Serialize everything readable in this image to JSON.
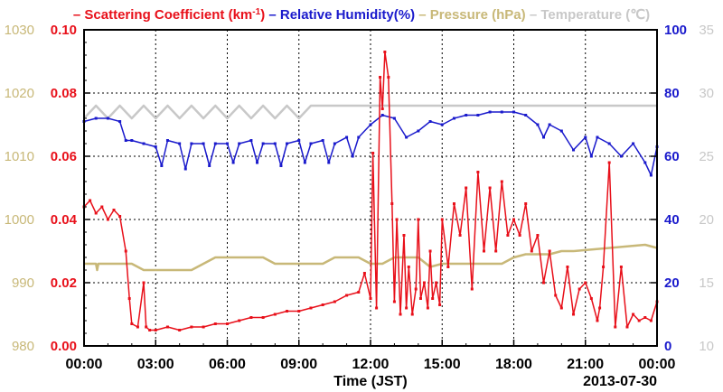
{
  "chart_data": {
    "type": "line",
    "xlabel": "Time (JST)",
    "date_label": "2013-07-30",
    "x_ticks": [
      "00:00",
      "03:00",
      "06:00",
      "09:00",
      "12:00",
      "15:00",
      "18:00",
      "21:00",
      "00:00"
    ],
    "x_unit": "hours",
    "grid": true,
    "legend": {
      "placement": "top",
      "separator": "–",
      "items": [
        {
          "name": "Scattering Coefficient (km",
          "sup": "-1",
          "tail": ")",
          "color": "#e8101a"
        },
        {
          "name": "Relative Humidity(%)",
          "color": "#1a1acc"
        },
        {
          "name": "Pressure (hPa)",
          "color": "#c8b878"
        },
        {
          "name": "Temperature (℃)",
          "color": "#c8c8c8"
        }
      ]
    },
    "axes": {
      "scattering": {
        "side": "left-inner",
        "min": 0.0,
        "max": 0.1,
        "ticks": [
          "0.00",
          "0.02",
          "0.04",
          "0.06",
          "0.08",
          "0.10"
        ],
        "color": "#e8101a"
      },
      "pressure": {
        "side": "left-outer",
        "min": 980,
        "max": 1030,
        "ticks": [
          "980",
          "990",
          "1000",
          "1010",
          "1020",
          "1030"
        ],
        "color": "#c8b878"
      },
      "humidity": {
        "side": "right-inner",
        "min": 0,
        "max": 100,
        "ticks": [
          "0",
          "20",
          "40",
          "60",
          "80",
          "100"
        ],
        "color": "#1a1acc"
      },
      "temperature": {
        "side": "right-outer",
        "min": 10,
        "max": 35,
        "ticks": [
          "10",
          "15",
          "20",
          "25",
          "30",
          "35"
        ],
        "color": "#c8c8c8"
      }
    },
    "series": [
      {
        "name": "Scattering Coefficient",
        "axis": "scattering",
        "color": "#e8101a",
        "markers": true,
        "x": [
          0,
          0.25,
          0.5,
          0.75,
          1.0,
          1.25,
          1.5,
          1.75,
          1.9,
          2.0,
          2.25,
          2.5,
          2.6,
          2.75,
          3.0,
          3.5,
          4.0,
          4.5,
          5.0,
          5.5,
          6.0,
          6.5,
          7.0,
          7.5,
          8.0,
          8.5,
          9.0,
          9.5,
          10.0,
          10.5,
          11.0,
          11.5,
          11.75,
          12.0,
          12.1,
          12.25,
          12.4,
          12.5,
          12.6,
          12.75,
          12.9,
          13.0,
          13.1,
          13.25,
          13.4,
          13.5,
          13.6,
          13.75,
          13.9,
          14.0,
          14.1,
          14.25,
          14.4,
          14.5,
          14.6,
          14.75,
          14.9,
          15.0,
          15.25,
          15.5,
          15.75,
          16.0,
          16.25,
          16.5,
          16.75,
          17.0,
          17.25,
          17.5,
          17.75,
          18.0,
          18.25,
          18.5,
          18.75,
          19.0,
          19.25,
          19.5,
          19.75,
          20.0,
          20.25,
          20.5,
          20.75,
          21.0,
          21.25,
          21.5,
          21.6,
          21.75,
          22.0,
          22.25,
          22.5,
          22.75,
          23.0,
          23.25,
          23.5,
          23.75,
          24.0
        ],
        "values": [
          0.044,
          0.046,
          0.042,
          0.044,
          0.04,
          0.043,
          0.041,
          0.03,
          0.015,
          0.007,
          0.006,
          0.02,
          0.006,
          0.005,
          0.005,
          0.006,
          0.005,
          0.006,
          0.006,
          0.007,
          0.007,
          0.008,
          0.009,
          0.009,
          0.01,
          0.011,
          0.011,
          0.012,
          0.013,
          0.014,
          0.016,
          0.017,
          0.023,
          0.015,
          0.061,
          0.012,
          0.085,
          0.075,
          0.093,
          0.085,
          0.045,
          0.014,
          0.04,
          0.01,
          0.035,
          0.012,
          0.025,
          0.01,
          0.018,
          0.04,
          0.015,
          0.02,
          0.012,
          0.03,
          0.015,
          0.02,
          0.013,
          0.04,
          0.025,
          0.045,
          0.035,
          0.05,
          0.018,
          0.055,
          0.03,
          0.05,
          0.03,
          0.052,
          0.035,
          0.04,
          0.035,
          0.045,
          0.03,
          0.035,
          0.02,
          0.03,
          0.016,
          0.012,
          0.025,
          0.01,
          0.018,
          0.02,
          0.015,
          0.008,
          0.012,
          0.025,
          0.058,
          0.006,
          0.025,
          0.006,
          0.01,
          0.008,
          0.009,
          0.008,
          0.014
        ]
      },
      {
        "name": "Relative Humidity",
        "axis": "humidity",
        "color": "#1a1acc",
        "markers": true,
        "x": [
          0,
          0.5,
          1.0,
          1.5,
          1.75,
          2.0,
          2.5,
          3.0,
          3.25,
          3.5,
          4.0,
          4.25,
          4.5,
          5.0,
          5.25,
          5.5,
          6.0,
          6.25,
          6.5,
          7.0,
          7.25,
          7.5,
          8.0,
          8.25,
          8.5,
          9.0,
          9.25,
          9.5,
          10.0,
          10.25,
          10.5,
          11.0,
          11.25,
          11.5,
          12.0,
          12.5,
          13.0,
          13.5,
          14.0,
          14.5,
          15.0,
          15.5,
          16.0,
          16.5,
          17.0,
          17.5,
          18.0,
          18.5,
          19.0,
          19.25,
          19.5,
          20.0,
          20.5,
          21.0,
          21.25,
          21.5,
          22.0,
          22.5,
          23.0,
          23.5,
          23.75,
          24.0
        ],
        "values": [
          71,
          72,
          72,
          71,
          65,
          65,
          64,
          63,
          57,
          65,
          64,
          56,
          64,
          64,
          57,
          64,
          64,
          58,
          64,
          65,
          58,
          64,
          64,
          57,
          64,
          65,
          58,
          64,
          65,
          58,
          64,
          66,
          60,
          66,
          70,
          73,
          72,
          66,
          68,
          71,
          70,
          72,
          73,
          73,
          74,
          74,
          74,
          73,
          70,
          66,
          70,
          68,
          62,
          66,
          60,
          66,
          64,
          60,
          64,
          58,
          54,
          63
        ]
      },
      {
        "name": "Pressure",
        "axis": "pressure",
        "color": "#c8b878",
        "markers": false,
        "x": [
          0,
          0.5,
          0.55,
          0.6,
          2.0,
          2.5,
          4.5,
          5.0,
          5.5,
          7.5,
          8.0,
          8.5,
          10.0,
          10.5,
          11.5,
          12.0,
          12.5,
          13.0,
          14.0,
          14.5,
          15.0,
          17.5,
          18.0,
          18.5,
          19.5,
          20.0,
          20.5,
          23.5,
          24.0
        ],
        "values": [
          993.0,
          993.0,
          992.0,
          993.0,
          993.0,
          992.0,
          992.0,
          993.0,
          994.0,
          994.0,
          993.0,
          993.0,
          993.0,
          994.0,
          994.0,
          993.0,
          993.0,
          994.0,
          994.0,
          992.5,
          993.0,
          993.0,
          994.0,
          994.5,
          994.5,
          995.0,
          995.0,
          996.0,
          995.5
        ]
      },
      {
        "name": "Temperature",
        "axis": "temperature",
        "color": "#c8c8c8",
        "markers": false,
        "x": [
          0,
          0.5,
          1.0,
          1.5,
          2.0,
          2.5,
          3.0,
          3.5,
          4.0,
          4.5,
          5.0,
          5.5,
          6.0,
          6.5,
          7.0,
          7.5,
          8.0,
          8.5,
          9.0,
          9.5,
          10.0,
          10.5,
          11.0,
          11.5,
          12.0,
          12.5,
          13.0,
          14.0,
          15.0,
          16.0,
          17.0,
          18.0,
          19.0,
          20.0,
          21.0,
          22.0,
          23.0,
          24.0
        ],
        "values": [
          28,
          29,
          28,
          29,
          28,
          29,
          28,
          29,
          28,
          29,
          28,
          29,
          28,
          29,
          28,
          29,
          28,
          29,
          28,
          29,
          29,
          29,
          29,
          29,
          29,
          29,
          29,
          29,
          29,
          29,
          29,
          29,
          29,
          29,
          29,
          29,
          29,
          29
        ]
      }
    ]
  }
}
